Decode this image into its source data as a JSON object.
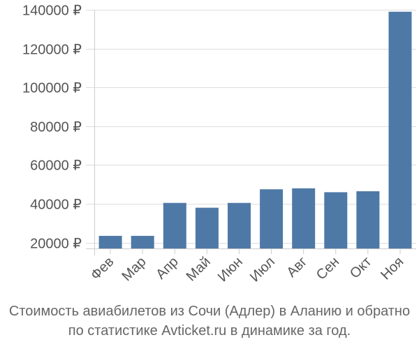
{
  "chart_data": {
    "type": "bar",
    "categories": [
      "Фев",
      "Мар",
      "Апр",
      "Май",
      "Июн",
      "Июл",
      "Авг",
      "Сен",
      "Окт",
      "Ноя"
    ],
    "series": [
      {
        "values": [
          23500,
          23500,
          40500,
          38000,
          40500,
          47500,
          48000,
          46000,
          46500,
          139000
        ]
      }
    ],
    "y_ticks": [
      "20000 ₽",
      "40000 ₽",
      "60000 ₽",
      "80000 ₽",
      "100000 ₽",
      "120000 ₽",
      "140000 ₽"
    ],
    "y_tick_values": [
      20000,
      40000,
      60000,
      80000,
      100000,
      120000,
      140000
    ],
    "ylim": [
      17000,
      140000
    ],
    "grid": "horizontal",
    "bar_color": "#4e79a7",
    "legend": "none"
  },
  "caption": {
    "line1": "Стоимость авиабилетов из Сочи (Адлер) в Аланию и обратно",
    "line2": "по статистике Avticket.ru в динамике за год."
  }
}
